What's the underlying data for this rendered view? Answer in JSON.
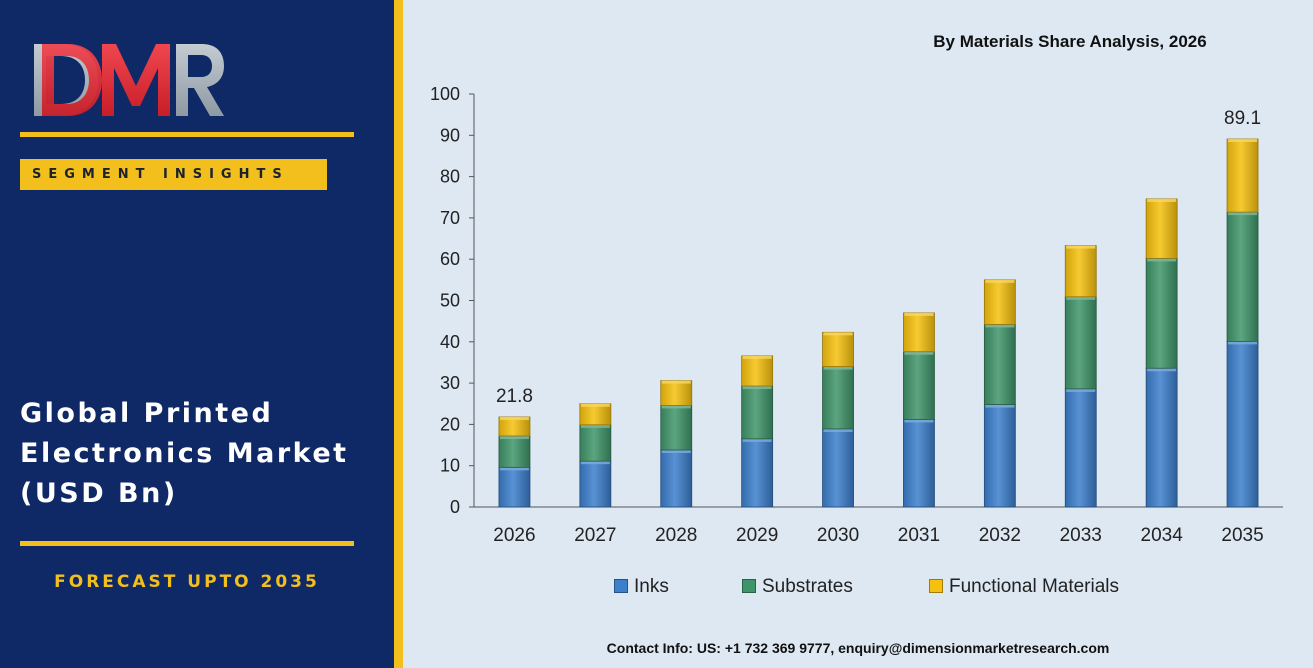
{
  "brand": {
    "logo_text": "DMR",
    "segment_badge": "SEGMENT INSIGHTS",
    "market_title_lines": [
      "Global Printed",
      "Electronics Market",
      "(USD Bn)"
    ],
    "forecast_label": "FORECAST UPTO 2035",
    "colors": {
      "panel": "#0f2866",
      "accent": "#f2bf1c",
      "logo_red": "#e8323c",
      "logo_gray": "#9aa5ad"
    }
  },
  "contact_info": "Contact Info: US: +1 732 369 9777, enquiry@dimensionmarketresearch.com",
  "chart_data": {
    "type": "bar",
    "stacked": true,
    "title": "By Materials Share Analysis, 2026",
    "xlabel": "",
    "ylabel": "",
    "ylim": [
      0,
      100
    ],
    "yticks": [
      0,
      10,
      20,
      30,
      40,
      50,
      60,
      70,
      80,
      90,
      100
    ],
    "grid": false,
    "legend_position": "bottom",
    "categories": [
      "2026",
      "2027",
      "2028",
      "2029",
      "2030",
      "2031",
      "2032",
      "2033",
      "2034",
      "2035"
    ],
    "series": [
      {
        "name": "Inks",
        "color": "#3c7fcc",
        "values": [
          9.6,
          11.1,
          13.8,
          16.5,
          18.9,
          21.2,
          24.8,
          28.6,
          33.6,
          40.1
        ]
      },
      {
        "name": "Substrates",
        "color": "#3f956a",
        "values": [
          7.6,
          8.8,
          10.8,
          12.8,
          15.1,
          16.4,
          19.4,
          22.3,
          26.6,
          31.3
        ]
      },
      {
        "name": "Functional Materials",
        "color": "#f6c10e",
        "values": [
          4.6,
          5.1,
          6.0,
          7.3,
          8.3,
          9.4,
          10.8,
          12.4,
          14.4,
          17.7
        ]
      }
    ],
    "data_labels": [
      {
        "category": "2026",
        "text": "21.8"
      },
      {
        "category": "2035",
        "text": "89.1"
      }
    ]
  }
}
